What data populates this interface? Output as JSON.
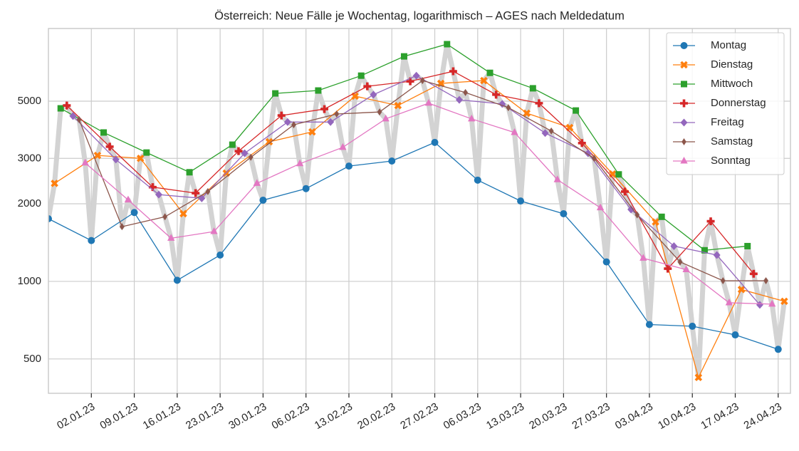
{
  "chart_data": {
    "type": "line",
    "title": "Österreich: Neue Fälle je Wochentag, logarithmisch – AGES nach Meldedatum",
    "log_y": true,
    "grid": true,
    "legend": "upper right",
    "daily_line_color": "#d3d3d3",
    "xlim": [
      "2022-12-26",
      "2023-04-26"
    ],
    "xticks": [
      {
        "value": "2023-01-02",
        "label": "02.01.23"
      },
      {
        "value": "2023-01-09",
        "label": "09.01.23"
      },
      {
        "value": "2023-01-16",
        "label": "16.01.23"
      },
      {
        "value": "2023-01-23",
        "label": "23.01.23"
      },
      {
        "value": "2023-01-30",
        "label": "30.01.23"
      },
      {
        "value": "2023-02-06",
        "label": "06.02.23"
      },
      {
        "value": "2023-02-13",
        "label": "13.02.23"
      },
      {
        "value": "2023-02-20",
        "label": "20.02.23"
      },
      {
        "value": "2023-02-27",
        "label": "27.02.23"
      },
      {
        "value": "2023-03-06",
        "label": "06.03.23"
      },
      {
        "value": "2023-03-13",
        "label": "13.03.23"
      },
      {
        "value": "2023-03-20",
        "label": "20.03.23"
      },
      {
        "value": "2023-03-27",
        "label": "27.03.23"
      },
      {
        "value": "2023-04-03",
        "label": "03.04.23"
      },
      {
        "value": "2023-04-10",
        "label": "10.04.23"
      },
      {
        "value": "2023-04-17",
        "label": "17.04.23"
      },
      {
        "value": "2023-04-24",
        "label": "24.04.23"
      }
    ],
    "ylim": [
      368,
      9570
    ],
    "yticks": [
      500,
      1000,
      2000,
      3000,
      5000
    ],
    "series": [
      {
        "name": "Montag",
        "color": "#1f77b4",
        "marker": "circle",
        "x": [
          "2022-12-26",
          "2023-01-02",
          "2023-01-09",
          "2023-01-16",
          "2023-01-23",
          "2023-01-30",
          "2023-02-06",
          "2023-02-13",
          "2023-02-20",
          "2023-02-27",
          "2023-03-06",
          "2023-03-13",
          "2023-03-20",
          "2023-03-27",
          "2023-04-03",
          "2023-04-10",
          "2023-04-17",
          "2023-04-24"
        ],
        "values": [
          1750,
          1440,
          1850,
          1010,
          1265,
          2065,
          2290,
          2800,
          2930,
          3460,
          2470,
          2050,
          1830,
          1190,
          680,
          670,
          620,
          545
        ]
      },
      {
        "name": "Dienstag",
        "color": "#ff7f0e",
        "marker": "x",
        "x": [
          "2022-12-27",
          "2023-01-03",
          "2023-01-10",
          "2023-01-17",
          "2023-01-24",
          "2023-01-31",
          "2023-02-07",
          "2023-02-14",
          "2023-02-21",
          "2023-02-28",
          "2023-03-07",
          "2023-03-14",
          "2023-03-21",
          "2023-03-28",
          "2023-04-04",
          "2023-04-11",
          "2023-04-18",
          "2023-04-25"
        ],
        "values": [
          2400,
          3080,
          3000,
          1830,
          2630,
          3480,
          3800,
          5230,
          4810,
          5860,
          6010,
          4490,
          3950,
          2610,
          1700,
          424,
          930,
          837
        ]
      },
      {
        "name": "Mittwoch",
        "color": "#2ca02c",
        "marker": "square",
        "x": [
          "2022-12-28",
          "2023-01-04",
          "2023-01-11",
          "2023-01-18",
          "2023-01-25",
          "2023-02-01",
          "2023-02-08",
          "2023-02-15",
          "2023-02-22",
          "2023-03-01",
          "2023-03-08",
          "2023-03-15",
          "2023-03-22",
          "2023-03-29",
          "2023-04-05",
          "2023-04-12",
          "2023-04-19"
        ],
        "values": [
          4690,
          3780,
          3160,
          2650,
          3390,
          5360,
          5500,
          6280,
          7460,
          8320,
          6440,
          5610,
          4600,
          2600,
          1780,
          1320,
          1370
        ]
      },
      {
        "name": "Donnerstag",
        "color": "#d62728",
        "marker": "plus",
        "x": [
          "2022-12-29",
          "2023-01-05",
          "2023-01-12",
          "2023-01-19",
          "2023-01-26",
          "2023-02-02",
          "2023-02-09",
          "2023-02-16",
          "2023-02-23",
          "2023-03-02",
          "2023-03-09",
          "2023-03-16",
          "2023-03-23",
          "2023-03-30",
          "2023-04-06",
          "2023-04-13",
          "2023-04-20"
        ],
        "values": [
          4810,
          3330,
          2320,
          2200,
          3200,
          4400,
          4660,
          5710,
          5970,
          6530,
          5300,
          4910,
          3440,
          2230,
          1120,
          1710,
          1070
        ]
      },
      {
        "name": "Freitag",
        "color": "#9467bd",
        "marker": "diamond",
        "x": [
          "2022-12-30",
          "2023-01-06",
          "2023-01-13",
          "2023-01-20",
          "2023-01-27",
          "2023-02-03",
          "2023-02-10",
          "2023-02-17",
          "2023-02-24",
          "2023-03-03",
          "2023-03-10",
          "2023-03-17",
          "2023-03-24",
          "2023-03-31",
          "2023-04-07",
          "2023-04-14",
          "2023-04-21"
        ],
        "values": [
          4380,
          2970,
          2170,
          2100,
          3140,
          4150,
          4150,
          5300,
          6280,
          5060,
          4880,
          3760,
          3140,
          1900,
          1370,
          1265,
          811
        ]
      },
      {
        "name": "Samstag",
        "color": "#8c564b",
        "marker": "thin_diamond",
        "x": [
          "2022-12-31",
          "2023-01-07",
          "2023-01-14",
          "2023-01-21",
          "2023-01-28",
          "2023-02-04",
          "2023-02-11",
          "2023-02-18",
          "2023-02-25",
          "2023-03-04",
          "2023-03-11",
          "2023-03-18",
          "2023-03-25",
          "2023-04-01",
          "2023-04-08",
          "2023-04-15",
          "2023-04-22"
        ],
        "values": [
          4240,
          1630,
          1780,
          2230,
          3030,
          4050,
          4460,
          4540,
          6010,
          5400,
          4720,
          3830,
          3000,
          1810,
          1190,
          1006,
          1006
        ]
      },
      {
        "name": "Sonntag",
        "color": "#e377c2",
        "marker": "triangle",
        "x": [
          "2023-01-01",
          "2023-01-08",
          "2023-01-15",
          "2023-01-22",
          "2023-01-29",
          "2023-02-05",
          "2023-02-12",
          "2023-02-19",
          "2023-02-26",
          "2023-03-05",
          "2023-03-12",
          "2023-03-19",
          "2023-03-26",
          "2023-04-02",
          "2023-04-09",
          "2023-04-16",
          "2023-04-23"
        ],
        "values": [
          2880,
          2070,
          1470,
          1560,
          2400,
          2860,
          3310,
          4270,
          4910,
          4270,
          3780,
          2480,
          1930,
          1230,
          1110,
          826,
          816
        ]
      }
    ]
  }
}
